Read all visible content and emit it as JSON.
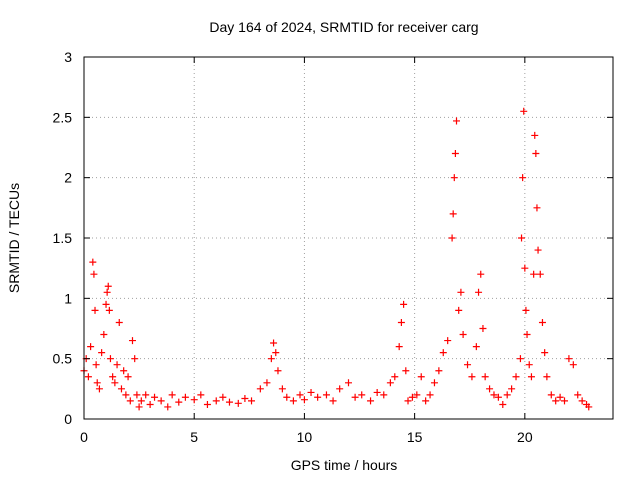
{
  "chart_data": {
    "type": "scatter",
    "title": "Day 164 of 2024, SRMTID for receiver carg",
    "xlabel": "GPS time / hours",
    "ylabel": "SRMTID / TECUs",
    "xlim": [
      0,
      24
    ],
    "ylim": [
      0,
      3
    ],
    "xticks": [
      0,
      5,
      10,
      15,
      20
    ],
    "yticks": [
      0,
      0.5,
      1,
      1.5,
      2,
      2.5,
      3
    ],
    "xtick_labels": [
      "0",
      "5",
      "10",
      "15",
      "20"
    ],
    "ytick_labels": [
      "0",
      "0.5",
      "1",
      "1.5",
      "2",
      "2.5",
      "3"
    ],
    "grid": true,
    "marker": "+",
    "marker_color": "#ff0000",
    "series": [
      {
        "name": "SRMTID",
        "x": [
          0.0,
          0.1,
          0.2,
          0.3,
          0.4,
          0.45,
          0.5,
          0.55,
          0.6,
          0.7,
          0.8,
          0.9,
          1.0,
          1.05,
          1.1,
          1.15,
          1.2,
          1.3,
          1.4,
          1.5,
          1.6,
          1.7,
          1.8,
          1.9,
          2.0,
          2.1,
          2.2,
          2.3,
          2.4,
          2.5,
          2.6,
          2.8,
          3.0,
          3.2,
          3.5,
          3.8,
          4.0,
          4.3,
          4.6,
          5.0,
          5.3,
          5.6,
          6.0,
          6.3,
          6.6,
          7.0,
          7.3,
          7.6,
          8.0,
          8.3,
          8.5,
          8.6,
          8.7,
          8.8,
          9.0,
          9.2,
          9.5,
          9.8,
          10.0,
          10.3,
          10.6,
          11.0,
          11.3,
          11.6,
          12.0,
          12.3,
          12.6,
          13.0,
          13.3,
          13.6,
          13.9,
          14.1,
          14.3,
          14.4,
          14.5,
          14.6,
          14.7,
          14.9,
          15.1,
          15.3,
          15.5,
          15.7,
          15.9,
          16.1,
          16.3,
          16.5,
          16.7,
          16.75,
          16.8,
          16.85,
          16.9,
          17.0,
          17.1,
          17.2,
          17.4,
          17.6,
          17.8,
          17.9,
          18.0,
          18.1,
          18.2,
          18.4,
          18.6,
          18.8,
          19.0,
          19.2,
          19.4,
          19.6,
          19.8,
          19.85,
          19.9,
          19.95,
          20.0,
          20.05,
          20.1,
          20.2,
          20.3,
          20.4,
          20.45,
          20.5,
          20.55,
          20.6,
          20.7,
          20.8,
          20.9,
          21.0,
          21.2,
          21.4,
          21.6,
          21.8,
          22.0,
          22.2,
          22.4,
          22.6,
          22.8,
          22.9
        ],
        "y": [
          0.4,
          0.5,
          0.35,
          0.6,
          1.3,
          1.2,
          0.9,
          0.45,
          0.3,
          0.25,
          0.55,
          0.7,
          0.95,
          1.05,
          1.1,
          0.9,
          0.5,
          0.35,
          0.3,
          0.45,
          0.8,
          0.25,
          0.4,
          0.2,
          0.35,
          0.15,
          0.65,
          0.5,
          0.2,
          0.1,
          0.15,
          0.2,
          0.12,
          0.18,
          0.15,
          0.1,
          0.2,
          0.14,
          0.18,
          0.16,
          0.2,
          0.12,
          0.15,
          0.18,
          0.14,
          0.13,
          0.17,
          0.15,
          0.25,
          0.3,
          0.5,
          0.63,
          0.55,
          0.4,
          0.25,
          0.18,
          0.15,
          0.2,
          0.16,
          0.22,
          0.18,
          0.2,
          0.15,
          0.25,
          0.3,
          0.18,
          0.2,
          0.15,
          0.22,
          0.2,
          0.3,
          0.35,
          0.6,
          0.8,
          0.95,
          0.4,
          0.15,
          0.18,
          0.2,
          0.35,
          0.15,
          0.2,
          0.3,
          0.4,
          0.55,
          0.65,
          1.5,
          1.7,
          2.0,
          2.2,
          2.47,
          0.9,
          1.05,
          0.7,
          0.45,
          0.35,
          0.6,
          1.05,
          1.2,
          0.75,
          0.35,
          0.25,
          0.2,
          0.18,
          0.12,
          0.2,
          0.25,
          0.35,
          0.5,
          1.5,
          2.0,
          2.55,
          1.25,
          0.9,
          0.7,
          0.45,
          0.35,
          1.2,
          2.35,
          2.2,
          1.75,
          1.4,
          1.2,
          0.8,
          0.55,
          0.35,
          0.2,
          0.15,
          0.18,
          0.15,
          0.5,
          0.45,
          0.2,
          0.15,
          0.12,
          0.1
        ]
      }
    ]
  }
}
